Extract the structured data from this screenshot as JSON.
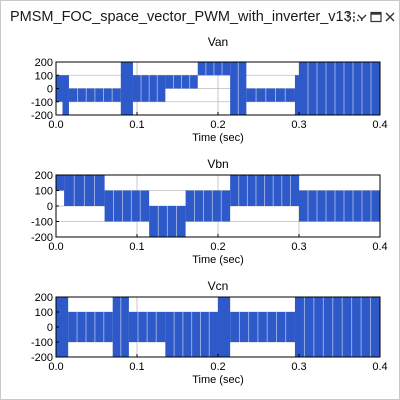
{
  "window": {
    "title": "PMSM_FOC_space_vector_PWM_with_inverter_v13...",
    "controls": [
      "grip-icon",
      "chevron-down-icon",
      "maximize-icon",
      "close-icon"
    ]
  },
  "colors": {
    "signal": "#2d59c9",
    "grid": "#bdbdbd",
    "axis": "#000000"
  },
  "chart_data": [
    {
      "type": "line",
      "title": "Van",
      "xlabel": "Time (sec)",
      "ylabel": "",
      "xlim": [
        0,
        0.4
      ],
      "ylim": [
        -200,
        200
      ],
      "x_ticks": [
        "0.0",
        "0.1",
        "0.2",
        "0.3",
        "0.4"
      ],
      "y_ticks": [
        "200",
        "100",
        "0",
        "-100",
        "-200"
      ],
      "levels": [
        200,
        100,
        -100,
        -200
      ],
      "segments": [
        {
          "t0": 0.0,
          "t1": 0.008,
          "lo": -100,
          "hi": 100
        },
        {
          "t0": 0.008,
          "t1": 0.016,
          "lo": -200,
          "hi": 100
        },
        {
          "t0": 0.016,
          "t1": 0.08,
          "lo": -100,
          "hi": 0
        },
        {
          "t0": 0.08,
          "t1": 0.095,
          "lo": -200,
          "hi": 200
        },
        {
          "t0": 0.095,
          "t1": 0.135,
          "lo": -100,
          "hi": 100
        },
        {
          "t0": 0.135,
          "t1": 0.175,
          "lo": 0,
          "hi": 100
        },
        {
          "t0": 0.175,
          "t1": 0.215,
          "lo": 100,
          "hi": 200
        },
        {
          "t0": 0.215,
          "t1": 0.235,
          "lo": -200,
          "hi": 200
        },
        {
          "t0": 0.235,
          "t1": 0.295,
          "lo": -100,
          "hi": 0
        },
        {
          "t0": 0.295,
          "t1": 0.3,
          "lo": -200,
          "hi": 100
        },
        {
          "t0": 0.3,
          "t1": 0.4,
          "lo": -200,
          "hi": 200
        }
      ]
    },
    {
      "type": "line",
      "title": "Vbn",
      "xlabel": "Time (sec)",
      "ylabel": "",
      "xlim": [
        0,
        0.4
      ],
      "ylim": [
        -200,
        200
      ],
      "x_ticks": [
        "0.0",
        "0.1",
        "0.2",
        "0.3",
        "0.4"
      ],
      "y_ticks": [
        "200",
        "100",
        "0",
        "-100",
        "-200"
      ],
      "levels": [
        200,
        100,
        -100,
        -200
      ],
      "segments": [
        {
          "t0": 0.0,
          "t1": 0.01,
          "lo": 100,
          "hi": 200
        },
        {
          "t0": 0.01,
          "t1": 0.06,
          "lo": 0,
          "hi": 200
        },
        {
          "t0": 0.06,
          "t1": 0.115,
          "lo": -100,
          "hi": 100
        },
        {
          "t0": 0.115,
          "t1": 0.16,
          "lo": -200,
          "hi": 0
        },
        {
          "t0": 0.16,
          "t1": 0.215,
          "lo": -100,
          "hi": 100
        },
        {
          "t0": 0.215,
          "t1": 0.3,
          "lo": 0,
          "hi": 200
        },
        {
          "t0": 0.3,
          "t1": 0.4,
          "lo": -100,
          "hi": 100
        }
      ]
    },
    {
      "type": "line",
      "title": "Vcn",
      "xlabel": "Time (sec)",
      "ylabel": "",
      "xlim": [
        0,
        0.4
      ],
      "ylim": [
        -200,
        200
      ],
      "x_ticks": [
        "0.0",
        "0.1",
        "0.2",
        "0.3",
        "0.4"
      ],
      "y_ticks": [
        "200",
        "100",
        "0",
        "-100",
        "-200"
      ],
      "levels": [
        200,
        100,
        -100,
        -200
      ],
      "segments": [
        {
          "t0": 0.0,
          "t1": 0.015,
          "lo": -200,
          "hi": 200
        },
        {
          "t0": 0.015,
          "t1": 0.07,
          "lo": -100,
          "hi": 100
        },
        {
          "t0": 0.07,
          "t1": 0.09,
          "lo": -200,
          "hi": 200
        },
        {
          "t0": 0.09,
          "t1": 0.135,
          "lo": -100,
          "hi": 100
        },
        {
          "t0": 0.135,
          "t1": 0.2,
          "lo": -200,
          "hi": 100
        },
        {
          "t0": 0.2,
          "t1": 0.215,
          "lo": -200,
          "hi": 200
        },
        {
          "t0": 0.215,
          "t1": 0.295,
          "lo": -100,
          "hi": 100
        },
        {
          "t0": 0.295,
          "t1": 0.4,
          "lo": -200,
          "hi": 200
        }
      ]
    }
  ]
}
